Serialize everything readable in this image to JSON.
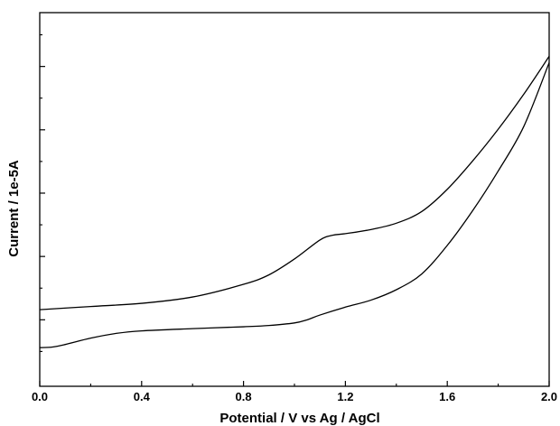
{
  "chart_data": {
    "type": "line",
    "title": "",
    "xlabel": "Potential / V vs Ag / AgCl",
    "ylabel": "Current / 1e-5A",
    "xlim": [
      0.0,
      2.0
    ],
    "ylim": [
      -8.1,
      3.7
    ],
    "x_ticks": [
      "0.0",
      "0.4",
      "0.8",
      "1.2",
      "1.6",
      "2.0"
    ],
    "x_tick_values": [
      0.0,
      0.4,
      0.8,
      1.2,
      1.6,
      2.0
    ],
    "y_major_tick_values": [
      -6.0,
      -4.0,
      -2.0,
      0.0,
      2.0
    ],
    "y_minor_tick_values": [
      -7.0,
      -5.0,
      -3.0,
      -1.0,
      1.0,
      3.0
    ],
    "y_tick_labels_shown": false,
    "grid": false,
    "legend": "none",
    "line_color": "#000000",
    "series": [
      {
        "x": [
          0.0,
          0.2,
          0.4,
          0.6,
          0.8,
          0.9,
          1.0,
          1.1,
          1.15,
          1.2,
          1.3,
          1.4,
          1.5,
          1.6,
          1.7,
          1.8,
          1.9,
          2.0
        ],
        "y": [
          -5.68,
          -5.58,
          -5.48,
          -5.28,
          -4.88,
          -4.58,
          -4.08,
          -3.48,
          -3.33,
          -3.28,
          -3.15,
          -2.95,
          -2.58,
          -1.88,
          -0.98,
          0.02,
          1.12,
          2.32
        ]
      },
      {
        "x": [
          0.0,
          0.05,
          0.1,
          0.2,
          0.3,
          0.4,
          0.6,
          0.8,
          0.9,
          1.0,
          1.05,
          1.1,
          1.2,
          1.3,
          1.4,
          1.5,
          1.6,
          1.7,
          1.8,
          1.9,
          2.0
        ],
        "y": [
          -6.88,
          -6.86,
          -6.78,
          -6.58,
          -6.43,
          -6.35,
          -6.28,
          -6.22,
          -6.18,
          -6.1,
          -6.0,
          -5.85,
          -5.6,
          -5.38,
          -5.05,
          -4.55,
          -3.65,
          -2.55,
          -1.3,
          0.1,
          2.12
        ]
      }
    ]
  }
}
